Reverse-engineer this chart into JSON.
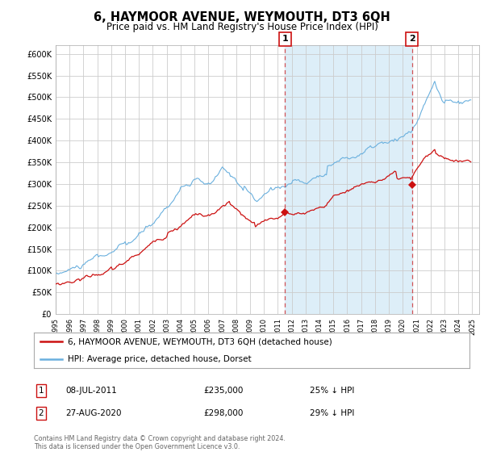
{
  "title": "6, HAYMOOR AVENUE, WEYMOUTH, DT3 6QH",
  "subtitle": "Price paid vs. HM Land Registry's House Price Index (HPI)",
  "title_fontsize": 10.5,
  "subtitle_fontsize": 8.5,
  "ylabel_ticks": [
    "£0",
    "£50K",
    "£100K",
    "£150K",
    "£200K",
    "£250K",
    "£300K",
    "£350K",
    "£400K",
    "£450K",
    "£500K",
    "£550K",
    "£600K"
  ],
  "ytick_values": [
    0,
    50000,
    100000,
    150000,
    200000,
    250000,
    300000,
    350000,
    400000,
    450000,
    500000,
    550000,
    600000
  ],
  "ylim": [
    0,
    620000
  ],
  "xlim_start": 1995.0,
  "xlim_end": 2025.5,
  "hpi_color": "#6ab0de",
  "hpi_fill_color": "#ddeef8",
  "price_color": "#cc1111",
  "marker1_x": 2011.52,
  "marker1_y": 235000,
  "marker1_label": "1",
  "marker1_date": "08-JUL-2011",
  "marker1_price": "£235,000",
  "marker1_pct": "25% ↓ HPI",
  "marker2_x": 2020.66,
  "marker2_y": 298000,
  "marker2_label": "2",
  "marker2_date": "27-AUG-2020",
  "marker2_price": "£298,000",
  "marker2_pct": "29% ↓ HPI",
  "legend_line1": "6, HAYMOOR AVENUE, WEYMOUTH, DT3 6QH (detached house)",
  "legend_line2": "HPI: Average price, detached house, Dorset",
  "footer": "Contains HM Land Registry data © Crown copyright and database right 2024.\nThis data is licensed under the Open Government Licence v3.0.",
  "background_color": "#ffffff",
  "grid_color": "#cccccc"
}
